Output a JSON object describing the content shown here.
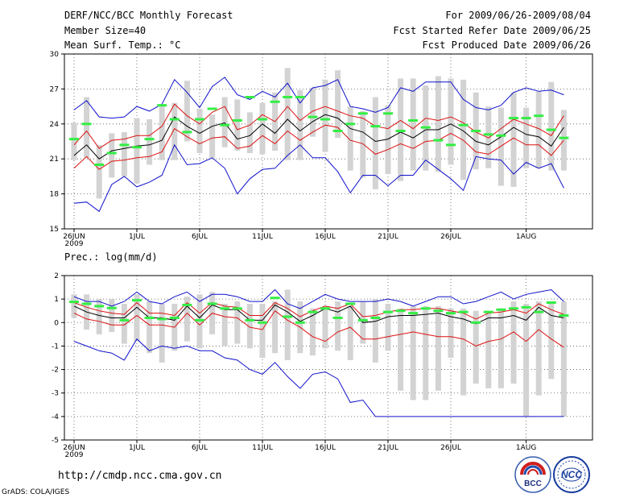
{
  "header": {
    "title": "DERF/NCC/BCC Monthly Forecast",
    "member_size": "Member Size=40",
    "variable": "Mean Surf. Temp.: °C",
    "forecast_period": "For 2009/06/26-2009/08/04",
    "started_refer": "Fcst Started Refer Date 2009/06/25",
    "produced": "Fcst Produced Date 2009/06/26"
  },
  "footer": {
    "url": "http://cmdp.ncc.cma.gov.cn",
    "credit": "GrADS: COLA/IGES",
    "logo_left_text": "BCC",
    "logo_right_text": "NCC"
  },
  "colors": {
    "bar": "#d3d3d3",
    "green": "#33ee44",
    "black": "#000000",
    "red": "#dd1111",
    "blue": "#1111cc"
  },
  "chart_data": [
    {
      "type": "line",
      "title": "Mean Surf. Temp.: °C",
      "x_tick_labels": [
        "26JUN",
        "1JUL",
        "6JUL",
        "11JUL",
        "16JUL",
        "21JUL",
        "26JUL",
        "1AUG"
      ],
      "x_tick_days": [
        0,
        5,
        10,
        15,
        20,
        25,
        30,
        36
      ],
      "x_sublabel": "2009",
      "days": 40,
      "ylim": [
        15,
        30
      ],
      "yticks": [
        15,
        18,
        21,
        24,
        27,
        30
      ],
      "series": [
        {
          "name": "spread_max",
          "values": [
            24.1,
            26.3,
            22.2,
            23.2,
            23.3,
            24.5,
            24.4,
            25.6,
            25.8,
            27.7,
            25.3,
            24.8,
            26.3,
            26.1,
            25.0,
            25.8,
            26.7,
            28.8,
            26.9,
            27.1,
            27.8,
            28.6,
            25.5,
            25.1,
            26.3,
            25.6,
            27.9,
            27.9,
            27.3,
            28.1,
            27.9,
            27.8,
            26.7,
            25.5,
            25.4,
            26.7,
            25.4,
            26.8,
            27.6,
            25.2
          ]
        },
        {
          "name": "spread_min",
          "values": [
            20.9,
            21.1,
            17.6,
            19.4,
            19.5,
            18.9,
            20.5,
            20.9,
            20.9,
            22.5,
            21.5,
            21.1,
            22.0,
            21.7,
            21.5,
            21.4,
            21.7,
            20.9,
            20.9,
            22.9,
            21.6,
            22.8,
            20.0,
            19.4,
            18.4,
            19.7,
            19.1,
            20.0,
            20.0,
            19.9,
            20.5,
            19.2,
            20.1,
            20.2,
            18.7,
            18.6,
            20.2,
            20.2,
            20.0,
            20.0
          ]
        },
        {
          "name": "green_marker",
          "values": [
            22.7,
            24.0,
            20.5,
            21.5,
            22.2,
            22.0,
            22.7,
            25.6,
            24.4,
            23.3,
            24.4,
            25.3,
            23.9,
            24.3,
            26.3,
            24.4,
            25.9,
            26.3,
            26.3,
            24.6,
            24.4,
            23.4,
            24.0,
            24.9,
            23.8,
            24.9,
            23.4,
            24.3,
            23.7,
            22.6,
            22.2,
            23.9,
            23.4,
            23.1,
            23.0,
            24.5,
            24.5,
            24.7,
            23.5,
            22.8
          ]
        },
        {
          "name": "ensemble_mean",
          "values": [
            21.3,
            22.2,
            21.0,
            21.7,
            21.9,
            22.1,
            22.2,
            22.6,
            24.6,
            23.8,
            23.2,
            23.8,
            24.1,
            22.7,
            23.0,
            24.0,
            23.2,
            24.4,
            23.4,
            24.2,
            24.8,
            24.5,
            23.6,
            23.3,
            22.5,
            22.7,
            23.3,
            22.8,
            23.5,
            23.5,
            24.0,
            23.4,
            22.5,
            22.2,
            22.9,
            23.7,
            23.1,
            22.9,
            22.1,
            23.7
          ]
        },
        {
          "name": "mean_plus_std",
          "values": [
            22.2,
            23.4,
            21.9,
            22.6,
            22.7,
            23.0,
            23.0,
            23.8,
            25.7,
            24.7,
            24.0,
            25.0,
            25.5,
            23.5,
            23.9,
            24.8,
            24.2,
            25.5,
            24.3,
            25.1,
            25.5,
            25.1,
            24.7,
            24.5,
            23.8,
            23.6,
            24.3,
            23.6,
            24.5,
            24.3,
            24.6,
            24.1,
            23.3,
            22.8,
            23.6,
            24.4,
            24.0,
            23.6,
            23.0,
            24.7
          ]
        },
        {
          "name": "mean_minus_std",
          "values": [
            20.2,
            21.2,
            20.1,
            20.8,
            20.9,
            21.1,
            21.2,
            21.6,
            23.6,
            22.9,
            22.3,
            22.8,
            22.9,
            21.9,
            22.1,
            23.0,
            22.3,
            23.4,
            22.6,
            23.3,
            23.9,
            23.7,
            22.6,
            22.3,
            21.4,
            21.8,
            22.3,
            21.9,
            22.5,
            22.6,
            23.2,
            22.6,
            21.6,
            21.4,
            22.1,
            22.8,
            22.2,
            22.2,
            21.3,
            22.6
          ]
        },
        {
          "name": "ensemble_max",
          "values": [
            25.2,
            26.0,
            24.6,
            24.5,
            24.6,
            25.5,
            25.1,
            25.7,
            27.8,
            26.7,
            25.4,
            27.2,
            28.0,
            26.5,
            26.1,
            26.8,
            26.3,
            27.5,
            25.8,
            27.1,
            27.3,
            27.8,
            25.5,
            25.3,
            25.0,
            25.4,
            27.1,
            26.8,
            27.6,
            27.6,
            27.6,
            26.1,
            25.4,
            25.2,
            25.6,
            26.7,
            27.1,
            26.8,
            26.9,
            26.5
          ]
        },
        {
          "name": "ensemble_min",
          "values": [
            17.2,
            17.3,
            16.5,
            18.8,
            19.5,
            18.6,
            19.0,
            19.6,
            22.2,
            20.5,
            20.6,
            21.1,
            20.2,
            18.0,
            19.3,
            20.1,
            20.2,
            21.3,
            22.2,
            21.1,
            21.1,
            19.9,
            18.1,
            19.6,
            19.6,
            18.7,
            19.6,
            19.6,
            20.9,
            20.1,
            19.3,
            18.3,
            21.2,
            21.0,
            20.9,
            19.7,
            20.7,
            20.2,
            20.6,
            18.5
          ]
        }
      ]
    },
    {
      "type": "line",
      "title": "Prec.: log(mm/d)",
      "x_tick_labels": [
        "26JUN",
        "1JUL",
        "6JUL",
        "11JUL",
        "16JUL",
        "21JUL",
        "26JUL",
        "1AUG"
      ],
      "x_tick_days": [
        0,
        5,
        10,
        15,
        20,
        25,
        30,
        36
      ],
      "x_sublabel": "2009",
      "days": 40,
      "ylim": [
        -5,
        2
      ],
      "yticks": [
        -5,
        -4,
        -3,
        -2,
        -1,
        0,
        1,
        2
      ],
      "series": [
        {
          "name": "spread_max",
          "values": [
            1.2,
            1.2,
            1.0,
            1.0,
            0.8,
            1.2,
            0.9,
            0.8,
            0.8,
            1.1,
            1.2,
            1.3,
            0.8,
            0.9,
            0.8,
            0.8,
            0.9,
            1.4,
            0.9,
            0.6,
            0.7,
            0.9,
            0.7,
            0.9,
            1.0,
            0.8,
            0.6,
            0.7,
            0.7,
            0.7,
            0.6,
            0.6,
            0.5,
            0.5,
            0.6,
            0.9,
            0.8,
            0.9,
            0.9,
            0.9
          ]
        },
        {
          "name": "spread_min",
          "values": [
            0.2,
            -0.3,
            -0.5,
            -0.4,
            -0.9,
            -0.8,
            -1.3,
            -1.7,
            -1.2,
            -0.8,
            -1.1,
            -0.5,
            -1.0,
            -0.9,
            -1.1,
            -1.5,
            -1.3,
            -1.6,
            -1.3,
            -1.4,
            -1.1,
            -1.2,
            -1.6,
            -0.9,
            -1.7,
            -1.2,
            -2.9,
            -3.3,
            -3.3,
            -2.9,
            -1.5,
            -3.1,
            -2.6,
            -2.8,
            -2.8,
            -2.6,
            -4.0,
            -3.1,
            -2.4,
            -4.0
          ]
        },
        {
          "name": "green_marker",
          "values": [
            0.88,
            0.8,
            0.7,
            0.62,
            0.1,
            0.95,
            0.2,
            0.15,
            0.2,
            0.75,
            0.1,
            0.8,
            0.6,
            0.6,
            0.1,
            0.0,
            1.05,
            0.25,
            0.0,
            0.45,
            0.6,
            0.2,
            0.8,
            0.1,
            0.2,
            0.45,
            0.5,
            0.4,
            0.6,
            0.5,
            0.4,
            0.45,
            0.0,
            0.45,
            0.55,
            0.6,
            0.65,
            0.45,
            0.85,
            0.3
          ]
        },
        {
          "name": "ensemble_mean",
          "values": [
            0.7,
            0.45,
            0.3,
            0.2,
            0.2,
            0.65,
            0.2,
            0.2,
            0.1,
            0.7,
            0.2,
            0.75,
            0.55,
            0.55,
            0.1,
            0.1,
            0.75,
            0.45,
            0.05,
            0.3,
            0.6,
            0.45,
            0.7,
            0.0,
            0.05,
            0.25,
            0.3,
            0.3,
            0.35,
            0.4,
            0.25,
            0.15,
            -0.05,
            0.2,
            0.2,
            0.3,
            0.1,
            0.65,
            0.3,
            0.2
          ]
        },
        {
          "name": "mean_plus_std",
          "values": [
            0.85,
            0.65,
            0.5,
            0.4,
            0.35,
            0.85,
            0.4,
            0.4,
            0.3,
            0.85,
            0.4,
            0.85,
            0.7,
            0.65,
            0.3,
            0.3,
            0.85,
            0.6,
            0.25,
            0.5,
            0.7,
            0.6,
            0.8,
            0.25,
            0.3,
            0.45,
            0.55,
            0.55,
            0.6,
            0.6,
            0.5,
            0.4,
            0.15,
            0.4,
            0.45,
            0.55,
            0.4,
            0.8,
            0.55,
            0.35
          ]
        },
        {
          "name": "mean_minus_std",
          "values": [
            0.4,
            0.15,
            0.05,
            -0.1,
            -0.1,
            0.3,
            -0.1,
            -0.1,
            -0.2,
            0.4,
            -0.1,
            0.4,
            0.25,
            0.2,
            -0.2,
            -0.3,
            0.5,
            0.1,
            -0.2,
            -0.6,
            -0.8,
            -0.4,
            -0.2,
            -0.7,
            -0.7,
            -0.6,
            -0.5,
            -0.4,
            -0.5,
            -0.6,
            -0.6,
            -0.7,
            -1.0,
            -0.8,
            -0.7,
            -0.4,
            -0.8,
            -0.3,
            -0.7,
            -1.05
          ]
        },
        {
          "name": "ensemble_max",
          "values": [
            1.1,
            0.9,
            0.9,
            0.7,
            0.9,
            1.3,
            0.9,
            0.8,
            1.1,
            1.3,
            0.9,
            1.2,
            1.2,
            1.1,
            0.9,
            0.9,
            1.4,
            0.8,
            0.6,
            0.9,
            1.2,
            1.0,
            0.9,
            0.9,
            0.9,
            1.0,
            0.9,
            0.7,
            0.9,
            1.1,
            1.1,
            0.8,
            0.9,
            1.1,
            1.3,
            1.0,
            1.2,
            1.3,
            1.4,
            0.9
          ]
        },
        {
          "name": "ensemble_min",
          "values": [
            -0.8,
            -1.0,
            -1.2,
            -1.3,
            -1.6,
            -0.7,
            -1.2,
            -1.0,
            -1.1,
            -1.0,
            -1.2,
            -1.2,
            -1.5,
            -1.6,
            -2.0,
            -2.2,
            -1.7,
            -2.3,
            -2.8,
            -2.2,
            -2.1,
            -2.4,
            -3.4,
            -3.3,
            -4.0,
            -4.0,
            -4.0,
            -4.0,
            -4.0,
            -4.0,
            -4.0,
            -4.0,
            -4.0,
            -4.0,
            -4.0,
            -4.0,
            -4.0,
            -4.0,
            -4.0,
            -4.0
          ]
        }
      ]
    }
  ]
}
